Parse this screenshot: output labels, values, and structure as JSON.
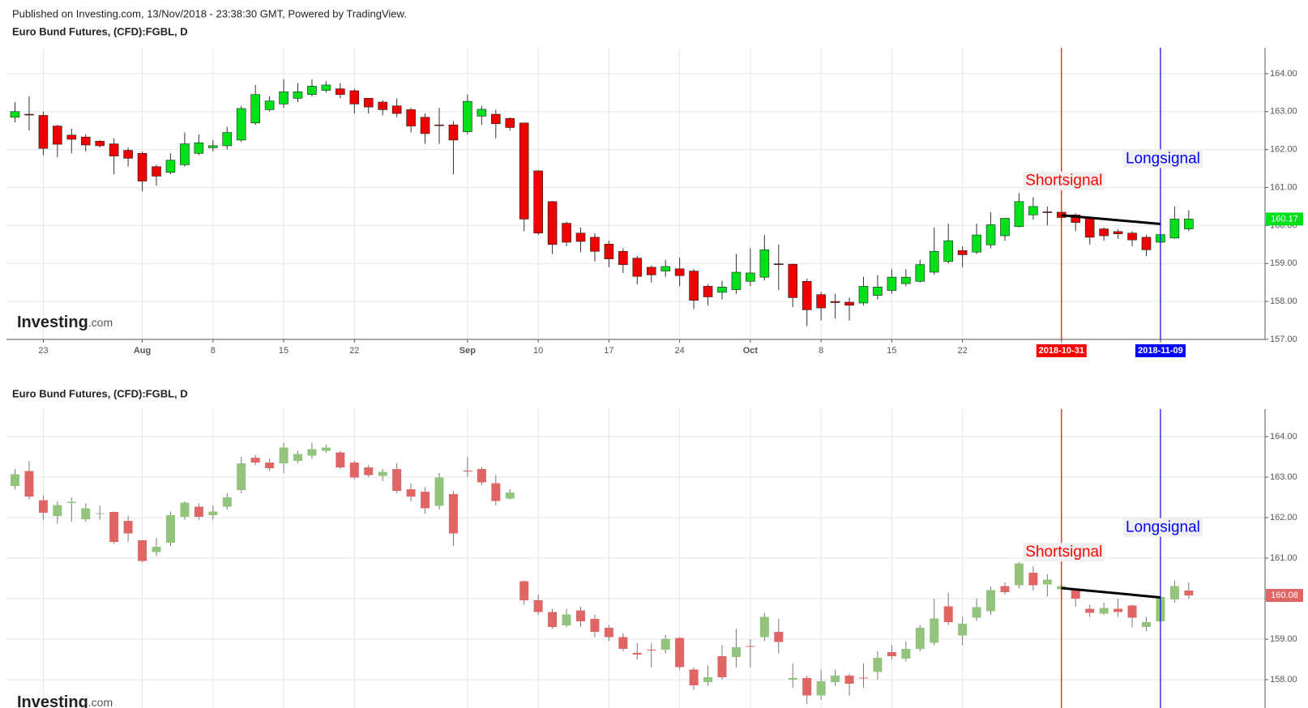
{
  "header": {
    "published": "Published on Investing.com, 13/Nov/2018 - 23:38:30 GMT, Powered by TradingView."
  },
  "chart_data": [
    {
      "type": "candlestick",
      "title": "Euro Bund Futures, (CFD):FGBL, D",
      "watermark": {
        "brand": "Investing",
        "suffix": ".com"
      },
      "categories": [
        null,
        null,
        "23",
        null,
        null,
        null,
        null,
        null,
        null,
        "Aug",
        null,
        null,
        null,
        null,
        "8",
        null,
        null,
        null,
        null,
        "15",
        null,
        null,
        null,
        null,
        "22",
        null,
        null,
        null,
        null,
        null,
        null,
        null,
        "Sep",
        null,
        null,
        null,
        null,
        "10",
        null,
        null,
        null,
        null,
        "17",
        null,
        null,
        null,
        null,
        "24",
        null,
        null,
        null,
        null,
        "Oct",
        null,
        null,
        null,
        null,
        "8",
        null,
        null,
        null,
        null,
        "15",
        null,
        null,
        null,
        null,
        "22",
        null,
        null,
        null,
        null,
        null,
        null,
        "2018-10-31",
        null,
        null,
        null,
        null,
        null,
        null,
        "2018-11-09",
        null,
        null
      ],
      "open": [
        162.85,
        162.93,
        162.9,
        162.62,
        162.38,
        162.33,
        162.22,
        162.15,
        161.98,
        161.9,
        161.55,
        161.4,
        161.6,
        161.9,
        162.05,
        162.1,
        162.25,
        162.7,
        163.05,
        163.2,
        163.35,
        163.45,
        163.56,
        163.6,
        163.55,
        163.35,
        163.25,
        163.15,
        163.05,
        162.85,
        162.65,
        162.65,
        162.47,
        162.88,
        162.93,
        162.82,
        162.7,
        161.44,
        160.63,
        160.06,
        159.8,
        159.69,
        159.51,
        159.32,
        159.14,
        158.9,
        158.8,
        158.86,
        158.8,
        158.4,
        158.24,
        158.31,
        158.53,
        158.64,
        158.99,
        158.98,
        158.53,
        158.18,
        158.0,
        157.98,
        157.96,
        158.16,
        158.29,
        158.47,
        158.53,
        158.77,
        159.05,
        159.34,
        159.3,
        159.49,
        159.73,
        159.97,
        160.28,
        160.36,
        160.35,
        160.28,
        160.19,
        159.91,
        159.84,
        159.8,
        159.69,
        159.56,
        159.67,
        159.91
      ],
      "high": [
        163.25,
        163.4,
        163.0,
        162.65,
        162.55,
        162.4,
        162.25,
        162.3,
        162.05,
        161.95,
        161.6,
        161.9,
        162.45,
        162.4,
        162.25,
        162.6,
        163.15,
        163.7,
        163.4,
        163.85,
        163.75,
        163.85,
        163.8,
        163.75,
        163.6,
        163.35,
        163.3,
        163.35,
        163.1,
        162.95,
        163.1,
        162.75,
        163.45,
        163.15,
        163.05,
        162.85,
        162.7,
        161.45,
        160.65,
        160.1,
        159.95,
        159.8,
        159.6,
        159.4,
        159.2,
        158.95,
        159.1,
        159.15,
        158.85,
        158.45,
        158.55,
        159.25,
        159.4,
        159.75,
        159.5,
        159.0,
        158.6,
        158.25,
        158.2,
        158.1,
        158.65,
        158.7,
        158.85,
        158.85,
        159.1,
        159.95,
        160.05,
        159.45,
        160.05,
        160.35,
        160.2,
        160.85,
        160.75,
        160.5,
        160.4,
        160.32,
        160.2,
        159.95,
        159.9,
        159.85,
        159.75,
        159.95,
        160.5,
        160.4
      ],
      "low": [
        162.72,
        162.5,
        161.85,
        161.8,
        161.9,
        161.95,
        162.05,
        161.35,
        161.55,
        160.9,
        161.05,
        161.35,
        161.55,
        161.85,
        161.95,
        162.0,
        162.2,
        162.65,
        163.0,
        163.1,
        163.25,
        163.4,
        163.5,
        163.35,
        162.95,
        162.95,
        162.9,
        162.85,
        162.45,
        162.15,
        162.15,
        161.35,
        162.4,
        162.65,
        162.3,
        162.5,
        159.85,
        159.75,
        159.25,
        159.45,
        159.3,
        159.05,
        158.9,
        158.75,
        158.45,
        158.5,
        158.65,
        158.4,
        157.8,
        157.9,
        158.05,
        158.2,
        158.4,
        158.55,
        158.3,
        157.85,
        157.35,
        157.5,
        157.55,
        157.5,
        157.9,
        158.05,
        158.2,
        158.4,
        158.5,
        158.7,
        159.0,
        158.9,
        159.25,
        159.4,
        159.6,
        159.95,
        160.15,
        160.0,
        160.05,
        159.85,
        159.5,
        159.6,
        159.65,
        159.45,
        159.2,
        159.45,
        159.65,
        159.85
      ],
      "close": [
        163.0,
        162.92,
        162.03,
        162.14,
        162.27,
        162.12,
        162.1,
        161.83,
        161.77,
        161.17,
        161.3,
        161.72,
        162.15,
        162.18,
        162.1,
        162.45,
        163.08,
        163.45,
        163.28,
        163.52,
        163.52,
        163.67,
        163.7,
        163.45,
        163.2,
        163.12,
        163.05,
        162.95,
        162.62,
        162.42,
        162.63,
        162.25,
        163.27,
        163.06,
        162.68,
        162.58,
        160.17,
        159.8,
        159.5,
        159.56,
        159.58,
        159.32,
        159.12,
        158.97,
        158.66,
        158.7,
        158.92,
        158.68,
        158.03,
        158.12,
        158.38,
        158.77,
        158.75,
        159.36,
        158.97,
        158.1,
        157.78,
        157.83,
        157.97,
        157.9,
        158.4,
        158.38,
        158.64,
        158.64,
        158.97,
        159.32,
        159.6,
        159.23,
        159.75,
        160.02,
        160.19,
        160.63,
        160.5,
        160.34,
        160.21,
        160.08,
        159.69,
        159.73,
        159.78,
        159.62,
        159.36,
        159.76,
        160.17,
        160.17
      ],
      "up_color": "#00e01a",
      "down_color": "#ee0000",
      "border_color": "#222222",
      "wick_color": "#333333",
      "ylim": [
        157.0,
        164.68
      ],
      "yticks": [
        {
          "value": 157,
          "label": "157.00"
        },
        {
          "value": 158,
          "label": "158.00"
        },
        {
          "value": 159,
          "label": "159.00"
        },
        {
          "value": 160,
          "label": "160.00"
        },
        {
          "value": 161,
          "label": "161.00"
        },
        {
          "value": 162,
          "label": "162.00"
        },
        {
          "value": 163,
          "label": "163.00"
        },
        {
          "value": 164,
          "label": "164.00"
        }
      ],
      "grid": true,
      "last_price": {
        "value": 160.17,
        "label": "160.17"
      },
      "signals": [
        {
          "x": "2018-10-31",
          "color": "#ff0000",
          "label": "Shortsignal"
        },
        {
          "x": "2018-11-09",
          "color": "#0000ff",
          "label": "Longsignal"
        }
      ],
      "trendline": [
        160.27,
        160.04
      ]
    },
    {
      "type": "candlestick",
      "title": "Euro Bund Futures, (CFD):FGBL, D",
      "watermark": {
        "brand": "Investing",
        "suffix": ".com"
      },
      "categories": [
        null,
        null,
        null,
        null,
        null,
        null,
        null,
        null,
        null,
        null,
        null,
        null,
        null,
        null,
        null,
        null,
        null,
        null,
        null,
        null,
        null,
        null,
        null,
        null,
        null,
        null,
        null,
        null,
        null,
        null,
        null,
        null,
        null,
        null,
        null,
        null,
        null,
        null,
        null,
        null,
        null,
        null,
        null,
        null,
        null,
        null,
        null,
        null,
        null,
        null,
        null,
        null,
        null,
        null,
        null,
        null,
        null,
        null,
        null,
        null,
        null,
        null,
        null,
        null,
        null,
        null,
        null,
        null,
        null,
        null,
        null,
        null,
        null,
        null,
        null,
        null,
        null,
        null,
        null,
        null,
        null,
        null,
        null,
        null
      ],
      "open": [
        162.78,
        163.15,
        162.43,
        162.04,
        162.36,
        161.96,
        162.1,
        162.14,
        161.92,
        161.44,
        161.15,
        161.38,
        162.02,
        162.27,
        162.06,
        162.27,
        162.68,
        163.48,
        163.36,
        163.34,
        163.4,
        163.53,
        163.65,
        163.61,
        163.36,
        163.24,
        163.03,
        163.2,
        162.7,
        162.64,
        162.29,
        162.58,
        163.16,
        163.2,
        162.85,
        162.47,
        160.43,
        159.96,
        159.67,
        159.34,
        159.71,
        159.5,
        159.28,
        159.05,
        158.66,
        158.74,
        158.74,
        159.03,
        158.25,
        157.94,
        158.58,
        158.56,
        158.83,
        159.05,
        159.18,
        158.0,
        158.04,
        157.61,
        157.94,
        158.1,
        158.05,
        158.19,
        158.68,
        158.52,
        158.76,
        158.91,
        159.81,
        159.09,
        159.53,
        159.69,
        160.31,
        160.33,
        160.64,
        160.35,
        160.23,
        160.23,
        159.75,
        159.63,
        159.75,
        159.83,
        159.3,
        159.44,
        159.98,
        160.2
      ],
      "high": [
        163.2,
        163.4,
        162.55,
        162.4,
        162.5,
        162.35,
        162.3,
        162.15,
        162.05,
        161.45,
        161.5,
        162.15,
        162.4,
        162.35,
        162.3,
        162.6,
        163.5,
        163.55,
        163.45,
        163.85,
        163.65,
        163.85,
        163.8,
        163.65,
        163.4,
        163.3,
        163.2,
        163.35,
        162.85,
        162.75,
        163.1,
        162.65,
        163.5,
        163.25,
        163.05,
        162.7,
        160.45,
        160.1,
        159.75,
        159.75,
        159.8,
        159.6,
        159.35,
        159.15,
        158.9,
        158.9,
        159.1,
        159.05,
        158.3,
        158.35,
        158.85,
        159.25,
        159.0,
        159.65,
        159.5,
        158.4,
        158.1,
        158.25,
        158.25,
        158.15,
        158.4,
        158.7,
        158.85,
        158.95,
        159.35,
        160.0,
        160.15,
        159.55,
        160.0,
        160.3,
        160.4,
        160.9,
        160.8,
        160.6,
        160.35,
        160.25,
        159.85,
        159.9,
        160.0,
        159.85,
        159.55,
        160.05,
        160.45,
        160.4
      ],
      "low": [
        162.7,
        162.45,
        161.95,
        161.85,
        161.9,
        161.9,
        161.95,
        161.35,
        161.4,
        160.9,
        161.05,
        161.3,
        161.95,
        161.95,
        161.95,
        162.2,
        162.6,
        163.3,
        163.15,
        163.1,
        163.35,
        163.45,
        163.6,
        163.2,
        162.95,
        163.0,
        162.9,
        162.6,
        162.4,
        162.1,
        162.2,
        161.3,
        163.0,
        162.8,
        162.3,
        162.45,
        159.85,
        159.6,
        159.25,
        159.3,
        159.3,
        159.05,
        158.95,
        158.7,
        158.5,
        158.3,
        158.65,
        158.25,
        157.75,
        157.85,
        158.0,
        158.3,
        158.3,
        158.95,
        158.65,
        157.8,
        157.4,
        157.5,
        157.85,
        157.6,
        157.8,
        158.0,
        158.5,
        158.45,
        158.7,
        158.85,
        159.35,
        158.85,
        159.45,
        159.6,
        160.1,
        160.25,
        160.2,
        160.05,
        160.1,
        159.8,
        159.55,
        159.6,
        159.55,
        159.3,
        159.2,
        159.4,
        159.9,
        160.0
      ],
      "close": [
        163.07,
        162.52,
        162.12,
        162.31,
        162.39,
        162.23,
        162.11,
        161.4,
        161.61,
        160.93,
        161.28,
        162.06,
        162.37,
        162.02,
        162.15,
        162.5,
        163.34,
        163.36,
        163.22,
        163.73,
        163.57,
        163.69,
        163.73,
        163.24,
        162.99,
        163.05,
        163.13,
        162.66,
        162.52,
        162.23,
        162.99,
        161.61,
        163.14,
        162.87,
        162.41,
        162.62,
        159.96,
        159.67,
        159.3,
        159.61,
        159.44,
        159.18,
        159.05,
        158.76,
        158.62,
        158.73,
        159.01,
        158.31,
        157.86,
        158.06,
        158.06,
        158.8,
        158.82,
        159.55,
        158.93,
        158.04,
        157.61,
        157.96,
        158.1,
        157.9,
        158.04,
        158.54,
        158.58,
        158.76,
        159.28,
        159.51,
        159.42,
        159.38,
        159.79,
        160.21,
        160.16,
        160.87,
        160.33,
        160.47,
        160.31,
        160.0,
        159.65,
        159.77,
        159.67,
        159.53,
        159.42,
        160.04,
        160.31,
        160.08
      ],
      "up_color": "#93c47d",
      "down_color": "#e06666",
      "wick_color": "#777777",
      "ylim": [
        157.3,
        164.68
      ],
      "yticks": [
        {
          "value": 158,
          "label": "158.00"
        },
        {
          "value": 159,
          "label": "159.00"
        },
        {
          "value": 160,
          "label": "160.00"
        },
        {
          "value": 161,
          "label": "161.00"
        },
        {
          "value": 162,
          "label": "162.00"
        },
        {
          "value": 163,
          "label": "163.00"
        },
        {
          "value": 164,
          "label": "164.00"
        }
      ],
      "grid": true,
      "last_price": {
        "value": 160.08,
        "label": "160.08"
      },
      "signals": [
        {
          "x": "2018-10-31",
          "color": "#ff0000",
          "label": "Shortsignal"
        },
        {
          "x": "2018-11-09",
          "color": "#0000ff",
          "label": "Longsignal"
        }
      ],
      "trendline": [
        160.26,
        160.03
      ]
    }
  ]
}
